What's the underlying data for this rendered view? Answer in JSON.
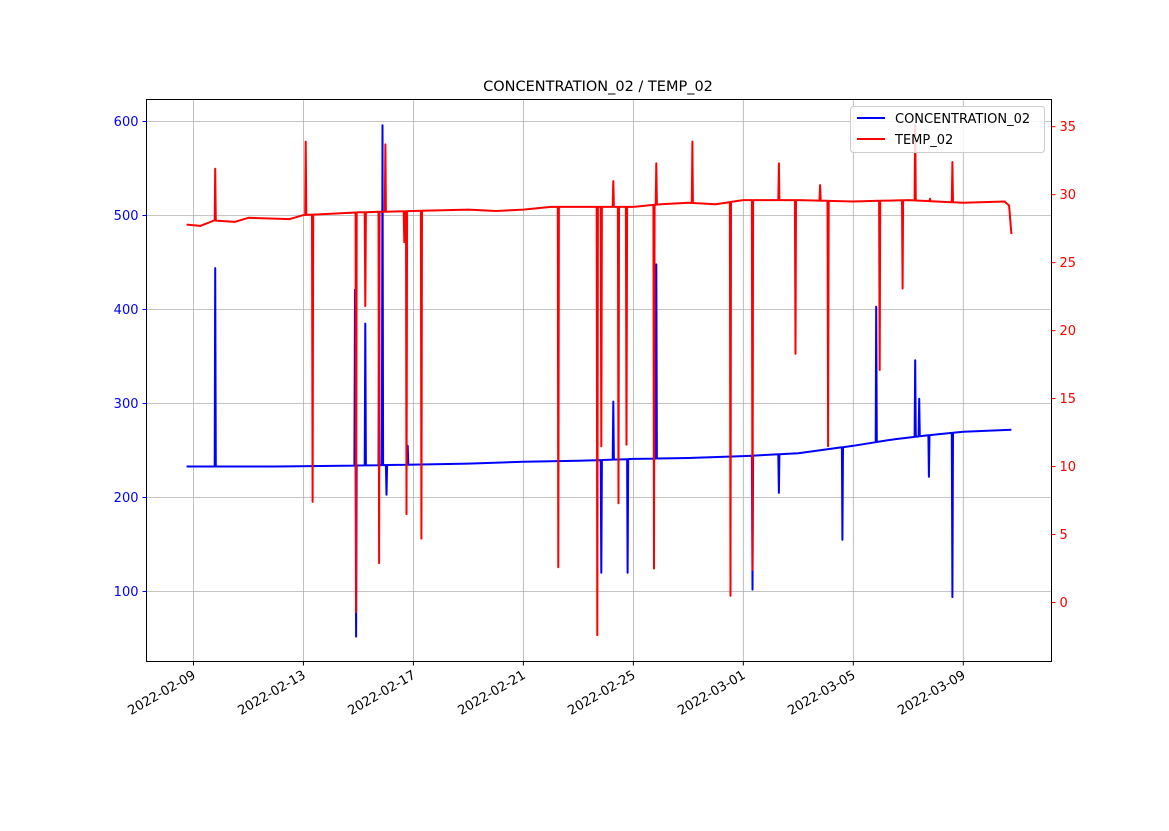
{
  "chart_data": {
    "type": "line",
    "title": "CONCENTRATION_02 / TEMP_02",
    "xlabel": "",
    "ylabel_left": "",
    "ylabel_right": "",
    "xlim": [
      "2022-02-07T07:00",
      "2022-03-12T05:00"
    ],
    "ylim_left": [
      25.5,
      623.4
    ],
    "ylim_right": [
      -4.34,
      37.0
    ],
    "grid": true,
    "legend_position": "top-right",
    "x_ticks": [
      "2022-02-09",
      "2022-02-13",
      "2022-02-17",
      "2022-02-21",
      "2022-02-25",
      "2022-03-01",
      "2022-03-05",
      "2022-03-09"
    ],
    "y_ticks_left": [
      100,
      200,
      300,
      400,
      500,
      600
    ],
    "y_ticks_right": [
      0,
      5,
      10,
      15,
      20,
      25,
      30,
      35
    ],
    "series": [
      {
        "name": "CONCENTRATION_02",
        "axis": "left",
        "color": "#0000ff",
        "baseline": [
          [
            "2022-02-08T18:00",
            233
          ],
          [
            "2022-02-12T00:00",
            233
          ],
          [
            "2022-02-15T00:00",
            234
          ],
          [
            "2022-02-17T00:00",
            235
          ],
          [
            "2022-02-19T00:00",
            236
          ],
          [
            "2022-02-21T00:00",
            238
          ],
          [
            "2022-02-23T00:00",
            239
          ],
          [
            "2022-02-25T00:00",
            241
          ],
          [
            "2022-02-27T00:00",
            242
          ],
          [
            "2022-03-01T00:00",
            244
          ],
          [
            "2022-03-03T00:00",
            247
          ],
          [
            "2022-03-05T00:00",
            255
          ],
          [
            "2022-03-06T12:00",
            262
          ],
          [
            "2022-03-08T00:00",
            267
          ],
          [
            "2022-03-09T00:00",
            270
          ],
          [
            "2022-03-10T18:00",
            272
          ]
        ],
        "spikes": [
          [
            "2022-02-09T19:00",
            444
          ],
          [
            "2022-02-14T21:00",
            421
          ],
          [
            "2022-02-14T22:00",
            52
          ],
          [
            "2022-02-15T06:00",
            385
          ],
          [
            "2022-02-15T18:00",
            420
          ],
          [
            "2022-02-15T21:00",
            596
          ],
          [
            "2022-02-16T00:30",
            203
          ],
          [
            "2022-02-16T19:00",
            255
          ],
          [
            "2022-02-23T20:00",
            120
          ],
          [
            "2022-02-24T06:30",
            302
          ],
          [
            "2022-02-24T19:00",
            120
          ],
          [
            "2022-02-25T20:00",
            448
          ],
          [
            "2022-03-01T08:00",
            102
          ],
          [
            "2022-03-02T07:00",
            205
          ],
          [
            "2022-03-04T14:30",
            155
          ],
          [
            "2022-03-05T20:00",
            403
          ],
          [
            "2022-03-07T06:00",
            346
          ],
          [
            "2022-03-07T09:30",
            305
          ],
          [
            "2022-03-07T18:00",
            222
          ],
          [
            "2022-03-08T14:30",
            94
          ]
        ]
      },
      {
        "name": "TEMP_02",
        "axis": "right",
        "color": "#ff0000",
        "baseline": [
          [
            "2022-02-08T18:00",
            27.8
          ],
          [
            "2022-02-09T06:00",
            27.7
          ],
          [
            "2022-02-09T18:00",
            28.1
          ],
          [
            "2022-02-10T12:00",
            28.0
          ],
          [
            "2022-02-11T00:00",
            28.3
          ],
          [
            "2022-02-12T12:00",
            28.2
          ],
          [
            "2022-02-13T00:00",
            28.5
          ],
          [
            "2022-02-14T00:00",
            28.6
          ],
          [
            "2022-02-15T00:00",
            28.7
          ],
          [
            "2022-02-17T00:00",
            28.8
          ],
          [
            "2022-02-19T00:00",
            28.9
          ],
          [
            "2022-02-20T00:00",
            28.8
          ],
          [
            "2022-02-21T00:00",
            28.9
          ],
          [
            "2022-02-22T00:00",
            29.1
          ],
          [
            "2022-02-23T00:00",
            29.1
          ],
          [
            "2022-02-25T00:00",
            29.1
          ],
          [
            "2022-02-26T00:00",
            29.3
          ],
          [
            "2022-02-27T00:00",
            29.4
          ],
          [
            "2022-02-28T00:00",
            29.3
          ],
          [
            "2022-03-01T00:00",
            29.6
          ],
          [
            "2022-03-03T00:00",
            29.6
          ],
          [
            "2022-03-05T00:00",
            29.5
          ],
          [
            "2022-03-07T00:00",
            29.6
          ],
          [
            "2022-03-09T00:00",
            29.4
          ],
          [
            "2022-03-10T12:00",
            29.5
          ],
          [
            "2022-03-10T16:00",
            29.2
          ],
          [
            "2022-03-10T18:00",
            27.1
          ]
        ],
        "spikes": [
          [
            "2022-02-09T19:00",
            31.9
          ],
          [
            "2022-02-13T02:00",
            33.9
          ],
          [
            "2022-02-13T08:00",
            7.4
          ],
          [
            "2022-02-14T22:00",
            -0.7
          ],
          [
            "2022-02-15T06:00",
            21.8
          ],
          [
            "2022-02-15T18:00",
            2.9
          ],
          [
            "2022-02-15T23:30",
            33.7
          ],
          [
            "2022-02-16T16:00",
            26.5
          ],
          [
            "2022-02-16T18:00",
            6.5
          ],
          [
            "2022-02-17T07:00",
            4.7
          ],
          [
            "2022-02-22T06:30",
            2.6
          ],
          [
            "2022-02-23T16:30",
            -2.4
          ],
          [
            "2022-02-23T20:00",
            11.5
          ],
          [
            "2022-02-24T06:30",
            31.0
          ],
          [
            "2022-02-24T11:00",
            7.3
          ],
          [
            "2022-02-24T18:00",
            11.6
          ],
          [
            "2022-02-25T18:00",
            2.5
          ],
          [
            "2022-02-25T20:00",
            32.3
          ],
          [
            "2022-02-27T03:30",
            33.9
          ],
          [
            "2022-02-28T12:45",
            0.5
          ],
          [
            "2022-03-01T08:00",
            2.4
          ],
          [
            "2022-03-02T07:00",
            32.3
          ],
          [
            "2022-03-02T21:30",
            18.3
          ],
          [
            "2022-03-03T19:00",
            30.7
          ],
          [
            "2022-03-04T02:00",
            11.5
          ],
          [
            "2022-03-05T23:00",
            17.1
          ],
          [
            "2022-03-06T19:00",
            23.1
          ],
          [
            "2022-03-07T06:00",
            35.1
          ],
          [
            "2022-03-07T19:00",
            29.7
          ],
          [
            "2022-03-08T14:30",
            32.4
          ]
        ]
      }
    ]
  }
}
